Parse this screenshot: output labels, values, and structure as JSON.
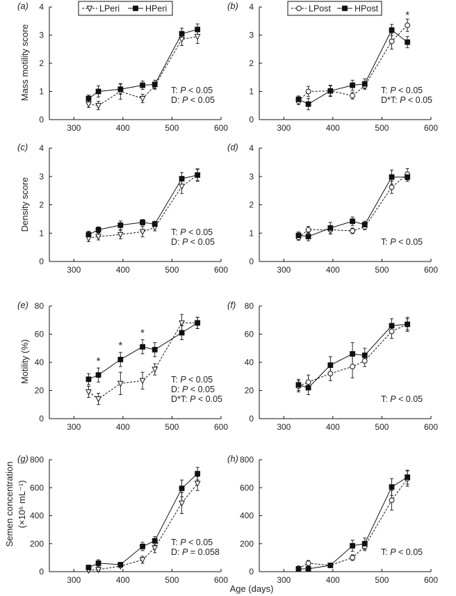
{
  "figure": {
    "xlabel": "Age (days)",
    "ylabels": {
      "mass": "Mass motility score",
      "density": "Density score",
      "motility": "Motility (%)",
      "conc_line1": "Semen concentration",
      "conc_line2": "(×10⁶ mL⁻¹)"
    },
    "legends": {
      "peri": [
        "LPeri",
        "HPeri"
      ],
      "post": [
        "LPost",
        "HPost"
      ]
    }
  },
  "chart_data": [
    {
      "panel": "(a)",
      "type": "line",
      "row": 0,
      "col": 0,
      "legend": "peri",
      "x": [
        330,
        350,
        395,
        440,
        465,
        520,
        552
      ],
      "xlim": [
        250,
        600
      ],
      "xticks": [
        300,
        400,
        500,
        600
      ],
      "ylim": [
        0,
        4
      ],
      "yticks": [
        0,
        1,
        2,
        3,
        4
      ],
      "series": [
        {
          "name": "LPeri",
          "style": "open-triangle-dashed",
          "values": [
            0.55,
            0.5,
            1.0,
            0.75,
            1.2,
            2.85,
            2.95
          ],
          "errors": [
            0.12,
            0.15,
            0.28,
            0.15,
            0.12,
            0.22,
            0.25
          ]
        },
        {
          "name": "HPeri",
          "style": "filled-square-solid",
          "values": [
            0.75,
            1.0,
            1.08,
            1.22,
            1.25,
            3.05,
            3.2
          ],
          "errors": [
            0.12,
            0.2,
            0.18,
            0.15,
            0.15,
            0.2,
            0.2
          ]
        }
      ],
      "stats": [
        "T: P < 0.05",
        "D: P < 0.05"
      ],
      "significance_marks": []
    },
    {
      "panel": "(b)",
      "type": "line",
      "row": 0,
      "col": 1,
      "legend": "post",
      "x": [
        330,
        350,
        395,
        440,
        465,
        520,
        552
      ],
      "xlim": [
        250,
        600
      ],
      "xticks": [
        300,
        400,
        500,
        600
      ],
      "ylim": [
        0,
        4
      ],
      "yticks": [
        0,
        1,
        2,
        3,
        4
      ],
      "series": [
        {
          "name": "LPost",
          "style": "open-circle-dashed",
          "values": [
            0.65,
            1.0,
            1.02,
            0.85,
            1.2,
            2.78,
            3.35
          ],
          "errors": [
            0.12,
            0.18,
            0.18,
            0.12,
            0.12,
            0.28,
            0.22
          ]
        },
        {
          "name": "HPost",
          "style": "filled-square-solid",
          "values": [
            0.72,
            0.55,
            1.02,
            1.22,
            1.27,
            3.18,
            2.75
          ],
          "errors": [
            0.12,
            0.2,
            0.2,
            0.18,
            0.18,
            0.2,
            0.2
          ]
        }
      ],
      "stats": [
        "T: P < 0.05",
        "D*T: P < 0.05"
      ],
      "significance_marks": [
        {
          "x": 552,
          "y": 3.72,
          "label": "*"
        }
      ]
    },
    {
      "panel": "(c)",
      "type": "line",
      "row": 1,
      "col": 0,
      "legend": "",
      "x": [
        330,
        350,
        395,
        440,
        465,
        520,
        552
      ],
      "xlim": [
        250,
        600
      ],
      "xticks": [
        300,
        400,
        500,
        600
      ],
      "ylim": [
        0,
        4
      ],
      "yticks": [
        0,
        1,
        2,
        3,
        4
      ],
      "series": [
        {
          "name": "LPeri",
          "style": "open-triangle-dashed",
          "values": [
            0.82,
            0.88,
            0.95,
            1.05,
            1.2,
            2.65,
            3.05
          ],
          "errors": [
            0.12,
            0.12,
            0.15,
            0.18,
            0.12,
            0.25,
            0.2
          ]
        },
        {
          "name": "HPeri",
          "style": "filled-square-solid",
          "values": [
            0.95,
            1.12,
            1.28,
            1.38,
            1.32,
            2.92,
            3.05
          ],
          "errors": [
            0.12,
            0.1,
            0.15,
            0.1,
            0.1,
            0.22,
            0.22
          ]
        }
      ],
      "stats": [
        "T: P < 0.05",
        "D: P < 0.05"
      ],
      "significance_marks": []
    },
    {
      "panel": "(d)",
      "type": "line",
      "row": 1,
      "col": 1,
      "legend": "",
      "x": [
        330,
        350,
        395,
        440,
        465,
        520,
        552
      ],
      "xlim": [
        250,
        600
      ],
      "xticks": [
        300,
        400,
        500,
        600
      ],
      "ylim": [
        0,
        4
      ],
      "yticks": [
        0,
        1,
        2,
        3,
        4
      ],
      "series": [
        {
          "name": "LPost",
          "style": "open-circle-dashed",
          "values": [
            0.85,
            1.12,
            1.12,
            1.08,
            1.22,
            2.62,
            3.08
          ],
          "errors": [
            0.1,
            0.12,
            0.15,
            0.1,
            0.1,
            0.22,
            0.2
          ]
        },
        {
          "name": "HPost",
          "style": "filled-square-solid",
          "values": [
            0.92,
            0.88,
            1.18,
            1.42,
            1.3,
            2.98,
            2.98
          ],
          "errors": [
            0.12,
            0.15,
            0.2,
            0.15,
            0.12,
            0.25,
            0.15
          ]
        }
      ],
      "stats": [
        "T: P < 0.05"
      ],
      "significance_marks": []
    },
    {
      "panel": "(e)",
      "type": "line",
      "row": 2,
      "col": 0,
      "legend": "",
      "x": [
        330,
        350,
        395,
        440,
        465,
        520,
        552
      ],
      "xlim": [
        250,
        600
      ],
      "xticks": [
        300,
        400,
        500,
        600
      ],
      "ylim": [
        0,
        80
      ],
      "yticks": [
        0,
        20,
        40,
        60,
        80
      ],
      "series": [
        {
          "name": "LPeri",
          "style": "open-triangle-dashed",
          "values": [
            19,
            14,
            25,
            27,
            35,
            68,
            68
          ],
          "errors": [
            4,
            4,
            8,
            6,
            4,
            6,
            4
          ]
        },
        {
          "name": "HPeri",
          "style": "filled-square-solid",
          "values": [
            28,
            31,
            42,
            51,
            49,
            61,
            68
          ],
          "errors": [
            4,
            5,
            5,
            5,
            5,
            5,
            4
          ]
        }
      ],
      "stats": [
        "T: P < 0.05",
        "D: P < 0.05",
        "D*T: P < 0.05"
      ],
      "significance_marks": [
        {
          "x": 350,
          "y": 41,
          "label": "*"
        },
        {
          "x": 395,
          "y": 52,
          "label": "*"
        },
        {
          "x": 440,
          "y": 61,
          "label": "*"
        }
      ]
    },
    {
      "panel": "(f)",
      "type": "line",
      "row": 2,
      "col": 1,
      "legend": "",
      "x": [
        330,
        350,
        395,
        440,
        465,
        520,
        552
      ],
      "xlim": [
        250,
        600
      ],
      "xticks": [
        300,
        400,
        500,
        600
      ],
      "ylim": [
        0,
        80
      ],
      "yticks": [
        0,
        20,
        40,
        60,
        80
      ],
      "series": [
        {
          "name": "LPost",
          "style": "open-circle-dashed",
          "values": [
            23,
            26,
            32,
            37,
            41,
            62,
            67
          ],
          "errors": [
            4,
            5,
            5,
            8,
            4,
            5,
            4
          ]
        },
        {
          "name": "HPost",
          "style": "filled-square-solid",
          "values": [
            24,
            22,
            38,
            46,
            45,
            66,
            67
          ],
          "errors": [
            4,
            5,
            6,
            8,
            5,
            5,
            5
          ]
        }
      ],
      "stats": [
        "T: P < 0.05"
      ],
      "significance_marks": []
    },
    {
      "panel": "(g)",
      "type": "line",
      "row": 3,
      "col": 0,
      "legend": "",
      "x": [
        330,
        350,
        395,
        440,
        465,
        520,
        552
      ],
      "xlim": [
        250,
        600
      ],
      "xticks": [
        300,
        400,
        500,
        600
      ],
      "ylim": [
        0,
        800
      ],
      "yticks": [
        0,
        200,
        400,
        600,
        800
      ],
      "series": [
        {
          "name": "LPeri",
          "style": "open-triangle-dashed",
          "values": [
            10,
            15,
            40,
            85,
            170,
            490,
            630
          ],
          "errors": [
            8,
            10,
            10,
            25,
            35,
            75,
            50
          ]
        },
        {
          "name": "HPeri",
          "style": "filled-square-solid",
          "values": [
            30,
            60,
            50,
            180,
            220,
            595,
            700
          ],
          "errors": [
            15,
            25,
            15,
            30,
            30,
            60,
            45
          ]
        }
      ],
      "stats": [
        "T: P < 0.05",
        "D: P = 0.058"
      ],
      "significance_marks": []
    },
    {
      "panel": "(h)",
      "type": "line",
      "row": 3,
      "col": 1,
      "legend": "",
      "x": [
        330,
        350,
        395,
        440,
        465,
        520,
        552
      ],
      "xlim": [
        250,
        600
      ],
      "xticks": [
        300,
        400,
        500,
        600
      ],
      "ylim": [
        0,
        800
      ],
      "yticks": [
        0,
        200,
        400,
        600,
        800
      ],
      "series": [
        {
          "name": "LPost",
          "style": "open-circle-dashed",
          "values": [
            25,
            60,
            45,
            100,
            180,
            510,
            665
          ],
          "errors": [
            10,
            20,
            10,
            20,
            30,
            70,
            55
          ]
        },
        {
          "name": "HPost",
          "style": "filled-square-solid",
          "values": [
            20,
            20,
            45,
            185,
            200,
            605,
            675
          ],
          "errors": [
            10,
            10,
            10,
            40,
            40,
            60,
            50
          ]
        }
      ],
      "stats": [
        "T: P < 0.05"
      ],
      "significance_marks": []
    }
  ]
}
